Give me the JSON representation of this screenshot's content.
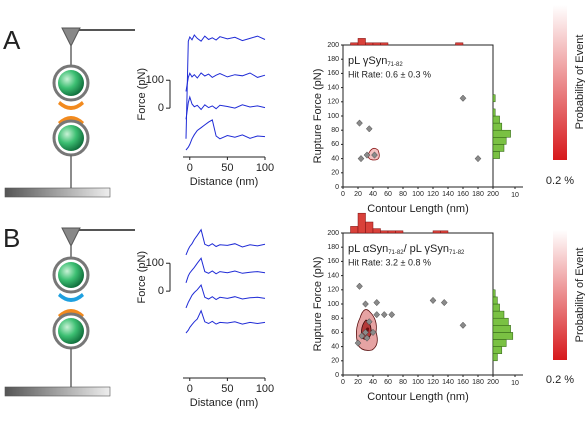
{
  "panel_labels": [
    "A",
    "B"
  ],
  "chart_data": [
    {
      "type": "line",
      "x_label": "Distance (nm)",
      "y_label": "Force (pN)",
      "x": [
        -5,
        -2,
        0,
        3,
        6,
        10,
        15,
        20,
        25,
        30,
        35,
        40,
        50,
        60,
        70,
        80,
        90,
        100
      ],
      "series": [
        {
          "color": "#1f2bd6",
          "values": [
            -110,
            240,
            255,
            245,
            262,
            250,
            240,
            258,
            246,
            252,
            244,
            256,
            248,
            254,
            242,
            250,
            258,
            246
          ]
        },
        {
          "color": "#1f2bd6",
          "values": [
            60,
            110,
            125,
            112,
            120,
            108,
            126,
            115,
            122,
            110,
            118,
            124,
            112,
            120,
            116,
            126,
            110,
            118
          ]
        },
        {
          "color": "#1f2bd6",
          "values": [
            -40,
            20,
            40,
            15,
            5,
            10,
            -5,
            12,
            2,
            8,
            -2,
            10,
            6,
            0,
            12,
            4,
            8,
            2
          ]
        },
        {
          "color": "#1f2bd6",
          "values": [
            -150,
            -140,
            -130,
            -110,
            -95,
            -80,
            -70,
            -60,
            -50,
            -42,
            -100,
            -110,
            -98,
            -104,
            -96,
            -108,
            -100,
            -102
          ]
        }
      ],
      "xlim": [
        -9,
        100
      ],
      "xticks": [
        0,
        50,
        100
      ],
      "ylim": [
        -150,
        280
      ],
      "yticks": [
        0,
        100
      ]
    },
    {
      "type": "scatter",
      "title": "pL γSyn",
      "title_sub": "71-82",
      "hit_rate": "Hit Rate: 0.6 ± 0.3 %",
      "x_label": "Contour Length (nm)",
      "y_label": "Rupture Force (pN)",
      "colorbar_label": "Probability of Event",
      "colorbar_tick_label": "0.2 %",
      "x": [
        22,
        35,
        24,
        32,
        42,
        160,
        180
      ],
      "values": [
        90,
        82,
        40,
        45,
        45,
        125,
        40
      ],
      "color": "#8a8a8a",
      "xlim": [
        0,
        200
      ],
      "xticks": [
        0,
        20,
        40,
        60,
        80,
        100,
        120,
        140,
        160,
        180,
        200
      ],
      "ylim": [
        0,
        200
      ],
      "yticks": [
        0,
        20,
        40,
        60,
        80,
        100,
        120,
        140,
        160,
        180,
        200
      ]
    },
    {
      "type": "histogram",
      "orientation": "vertical",
      "color": "#d9413a",
      "bins": [
        0,
        10,
        20,
        30,
        40,
        50,
        60,
        70,
        80,
        90,
        100,
        110,
        120,
        130,
        140,
        150,
        160,
        170,
        180,
        190,
        200
      ],
      "values": [
        0,
        1,
        3,
        1,
        1,
        1,
        0,
        0,
        0,
        0,
        0,
        0,
        0,
        0,
        0,
        1,
        0,
        0,
        0,
        0
      ],
      "ylim": [
        0,
        10
      ]
    },
    {
      "type": "histogram",
      "orientation": "horizontal",
      "color": "#7ac143",
      "bins": [
        0,
        10,
        20,
        30,
        40,
        50,
        60,
        70,
        80,
        90,
        100,
        110,
        120,
        130,
        140,
        150,
        160,
        170,
        180,
        190,
        200
      ],
      "values": [
        0,
        0,
        0,
        0,
        3,
        5,
        6,
        8,
        4,
        3,
        1,
        0,
        1,
        0,
        0,
        0,
        0,
        0,
        0,
        0
      ],
      "xlim": [
        0,
        10
      ],
      "xticks": [
        10
      ]
    },
    {
      "type": "line",
      "x_label": "Distance (nm)",
      "y_label": "Force (pN)",
      "x": [
        -5,
        -2,
        0,
        3,
        6,
        10,
        15,
        20,
        25,
        30,
        35,
        40,
        50,
        60,
        70,
        80,
        90,
        100
      ],
      "series": [
        {
          "color": "#1f2bd6",
          "values": [
            130,
            150,
            160,
            170,
            185,
            200,
            220,
            168,
            162,
            170,
            160,
            166,
            164,
            170,
            158,
            166,
            162,
            168
          ]
        },
        {
          "color": "#1f2bd6",
          "values": [
            30,
            55,
            65,
            75,
            85,
            100,
            118,
            70,
            64,
            72,
            62,
            70,
            66,
            72,
            64,
            68,
            70,
            66
          ]
        },
        {
          "color": "#1f2bd6",
          "values": [
            -60,
            -40,
            -30,
            -15,
            -5,
            5,
            22,
            -22,
            -28,
            -20,
            -30,
            -22,
            -26,
            -20,
            -28,
            -24,
            -22,
            -26
          ]
        },
        {
          "color": "#1f2bd6",
          "values": [
            -150,
            -140,
            -130,
            -120,
            -110,
            -100,
            -70,
            -110,
            -116,
            -108,
            -118,
            -112,
            -114,
            -110,
            -118,
            -112,
            -116,
            -112
          ]
        }
      ],
      "xlim": [
        -9,
        100
      ],
      "xticks": [
        0,
        50,
        100
      ],
      "ylim": [
        -150,
        280
      ],
      "yticks": [
        0,
        100
      ]
    },
    {
      "type": "scatter",
      "title": "pL αSyn",
      "title_sub": "71-82",
      "title2": "/ pL γSyn",
      "title2_sub": "71-82",
      "hit_rate": "Hit Rate: 3.2 ± 0.8 %",
      "x_label": "Contour Length (nm)",
      "y_label": "Rupture Force (pN)",
      "colorbar_label": "Probability of Event",
      "colorbar_tick_label": "0.2 %",
      "x": [
        22,
        45,
        120,
        135,
        160,
        45,
        55,
        65,
        30,
        40,
        25,
        20,
        35,
        30,
        32
      ],
      "values": [
        125,
        102,
        105,
        102,
        70,
        85,
        85,
        85,
        60,
        60,
        55,
        45,
        75,
        100,
        52
      ],
      "color": "#8a8a8a",
      "xlim": [
        0,
        200
      ],
      "xticks": [
        0,
        20,
        40,
        60,
        80,
        100,
        120,
        140,
        160,
        180,
        200
      ],
      "ylim": [
        0,
        200
      ],
      "yticks": [
        0,
        20,
        40,
        60,
        80,
        100,
        120,
        140,
        160,
        180,
        200
      ]
    },
    {
      "type": "histogram",
      "orientation": "vertical",
      "color": "#d9413a",
      "bins": [
        0,
        10,
        20,
        30,
        40,
        50,
        60,
        70,
        80,
        90,
        100,
        110,
        120,
        130,
        140,
        150,
        160,
        170,
        180,
        190,
        200
      ],
      "values": [
        0,
        3,
        9,
        5,
        2,
        1,
        1,
        1,
        0,
        0,
        0,
        0,
        1,
        1,
        0,
        0,
        0,
        0,
        0,
        0
      ],
      "ylim": [
        0,
        10
      ]
    },
    {
      "type": "histogram",
      "orientation": "horizontal",
      "color": "#7ac143",
      "bins": [
        0,
        10,
        20,
        30,
        40,
        50,
        60,
        70,
        80,
        90,
        100,
        110,
        120,
        130,
        140,
        150,
        160,
        170,
        180,
        190,
        200
      ],
      "values": [
        0,
        0,
        2,
        4,
        6,
        9,
        8,
        7,
        5,
        3,
        2,
        1,
        0,
        0,
        0,
        0,
        0,
        0,
        0,
        0
      ],
      "xlim": [
        0,
        10
      ],
      "xticks": [
        10
      ]
    }
  ]
}
